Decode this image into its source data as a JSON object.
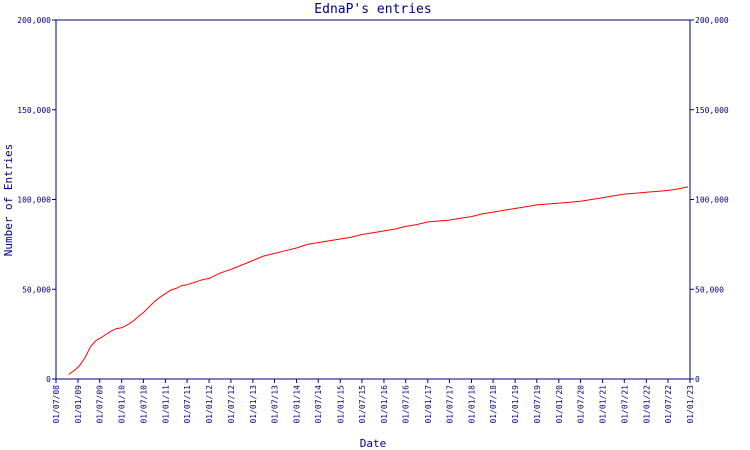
{
  "chart_data": {
    "type": "line",
    "title": "EdnaP's entries",
    "xlabel": "Date",
    "ylabel": "Number of Entries",
    "ylim": [
      0,
      200000
    ],
    "y_ticks": [
      0,
      50000,
      100000,
      150000,
      200000
    ],
    "y_tick_labels": [
      "0",
      "50,000",
      "100,000",
      "150,000",
      "200,000"
    ],
    "y_tick_labels_right": [
      "0",
      "50,000",
      "100,000",
      "150,000",
      "200,000"
    ],
    "x_tick_labels": [
      "01/07/08",
      "01/01/09",
      "01/07/09",
      "01/01/10",
      "01/07/10",
      "01/01/11",
      "01/07/11",
      "01/01/12",
      "01/07/12",
      "01/01/13",
      "01/07/13",
      "01/01/14",
      "01/07/14",
      "01/01/15",
      "01/07/15",
      "01/01/16",
      "01/07/16",
      "01/01/17",
      "01/07/17",
      "01/01/18",
      "01/07/18",
      "01/01/19",
      "01/07/19",
      "01/01/20",
      "01/07/20",
      "01/01/21",
      "01/07/21",
      "01/01/22",
      "01/07/22",
      "01/01/23"
    ],
    "grid": false,
    "series": [
      {
        "color": "#ff0000",
        "x": [
          "2008-10-15",
          "2008-12-15",
          "2009-01-15",
          "2009-03-01",
          "2009-04-15",
          "2009-06-01",
          "2009-07-01",
          "2009-08-15",
          "2009-10-01",
          "2009-11-15",
          "2010-01-01",
          "2010-02-15",
          "2010-04-01",
          "2010-05-15",
          "2010-07-01",
          "2010-08-15",
          "2010-10-01",
          "2010-11-15",
          "2011-01-01",
          "2011-02-15",
          "2011-04-01",
          "2011-05-15",
          "2011-07-01",
          "2011-08-15",
          "2011-10-01",
          "2011-11-15",
          "2012-01-01",
          "2012-02-15",
          "2012-04-01",
          "2012-05-15",
          "2012-07-01",
          "2012-10-01",
          "2013-01-01",
          "2013-04-01",
          "2013-07-01",
          "2013-10-01",
          "2014-01-01",
          "2014-04-01",
          "2014-07-01",
          "2014-10-01",
          "2015-01-01",
          "2015-04-01",
          "2015-07-01",
          "2015-10-01",
          "2016-01-01",
          "2016-04-01",
          "2016-07-01",
          "2016-10-01",
          "2017-01-01",
          "2017-04-01",
          "2017-07-01",
          "2017-10-01",
          "2018-01-01",
          "2018-04-01",
          "2018-07-01",
          "2018-10-01",
          "2019-01-01",
          "2019-04-01",
          "2019-07-01",
          "2019-10-01",
          "2020-01-01",
          "2020-04-01",
          "2020-07-01",
          "2020-10-01",
          "2021-01-01",
          "2021-04-01",
          "2021-07-01",
          "2021-10-01",
          "2022-01-01",
          "2022-04-01",
          "2022-07-01",
          "2022-10-01",
          "2022-12-15"
        ],
        "y": [
          2500,
          5500,
          7500,
          12000,
          18000,
          21500,
          22500,
          24500,
          26500,
          28000,
          28500,
          30000,
          32000,
          34500,
          37000,
          40000,
          43000,
          45500,
          47500,
          49500,
          50500,
          52000,
          52500,
          53500,
          54500,
          55500,
          56000,
          57500,
          59000,
          60000,
          61000,
          63500,
          66000,
          68500,
          70000,
          71500,
          73000,
          75000,
          76000,
          77000,
          78000,
          79000,
          80500,
          81500,
          82500,
          83500,
          85000,
          86000,
          87500,
          88000,
          88500,
          89500,
          90500,
          92000,
          93000,
          94000,
          95000,
          96000,
          97000,
          97500,
          98000,
          98500,
          99000,
          100000,
          101000,
          102000,
          103000,
          103500,
          104000,
          104500,
          105000,
          106000,
          107000
        ]
      }
    ]
  }
}
